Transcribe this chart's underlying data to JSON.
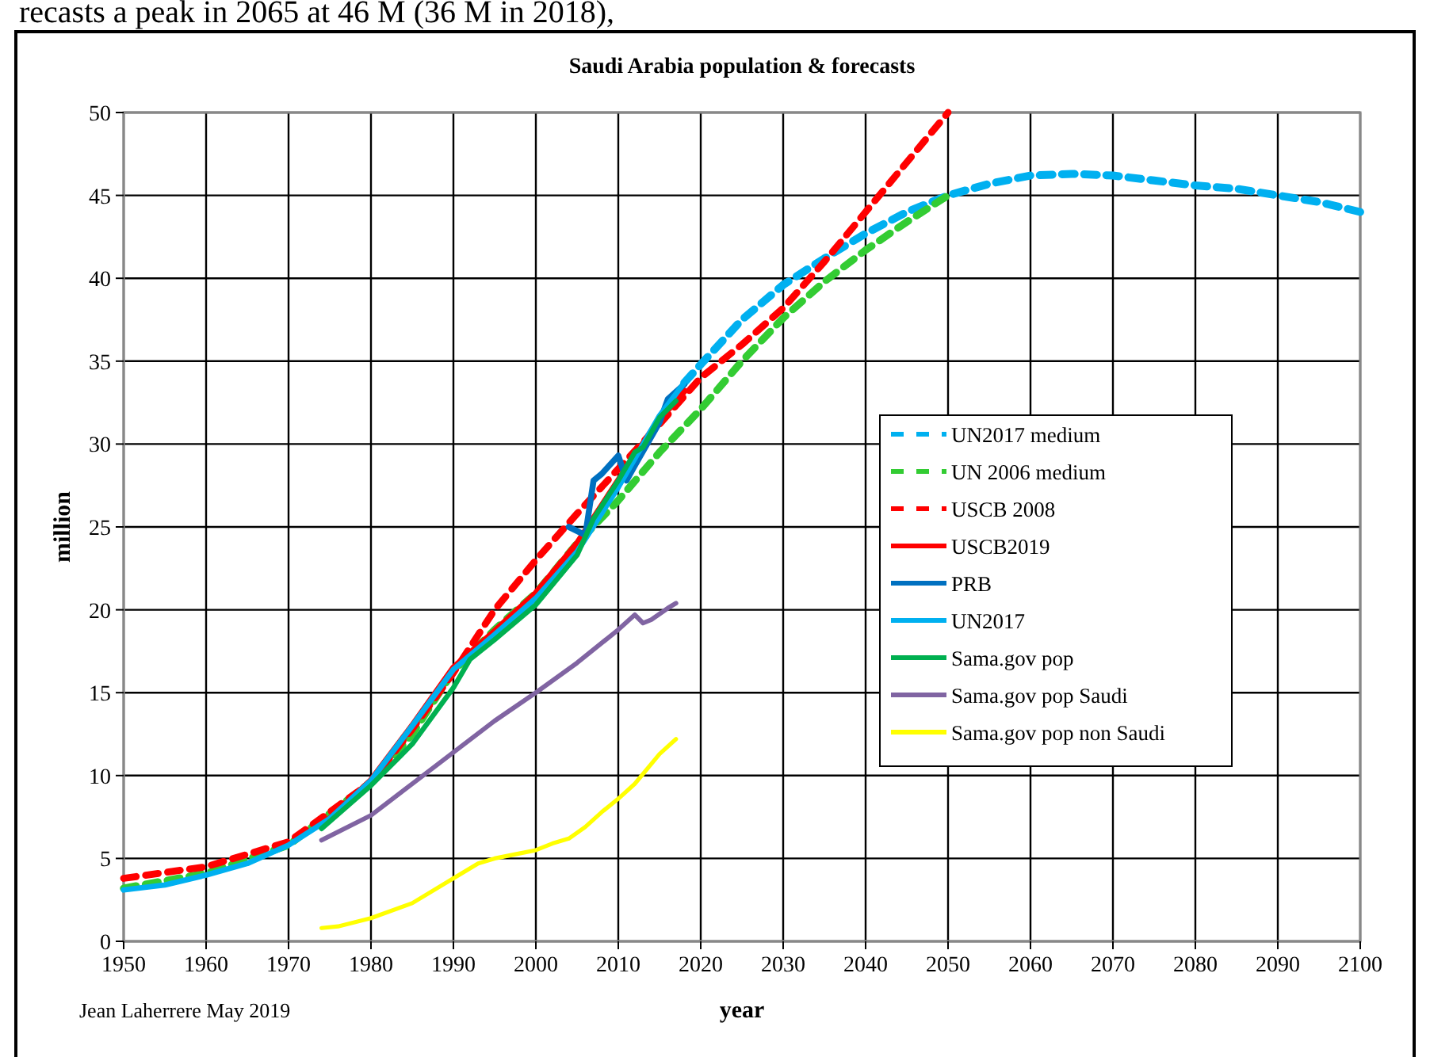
{
  "chart_data": {
    "type": "line",
    "title": "Saudi Arabia population & forecasts",
    "xlabel": "year",
    "ylabel": "million",
    "annotations": [
      "recasts a peak in 2065 at 46 M (36 M in 2018),",
      "Jean Laherrere May 2019"
    ],
    "xlim": [
      1950,
      2100
    ],
    "xticks": [
      1950,
      1960,
      1970,
      1980,
      1990,
      2000,
      2010,
      2020,
      2030,
      2040,
      2050,
      2060,
      2070,
      2080,
      2090,
      2100
    ],
    "ylim": [
      0,
      50
    ],
    "yticks": [
      0,
      5,
      10,
      15,
      20,
      25,
      30,
      35,
      40,
      45,
      50
    ],
    "grid": true,
    "legend": "right",
    "series": [
      {
        "name": "UN2017 medium",
        "color": "#00b0f0",
        "line_style": "dashed",
        "x": [
          2018,
          2020,
          2025,
          2030,
          2035,
          2040,
          2045,
          2050,
          2055,
          2060,
          2065,
          2070,
          2075,
          2080,
          2085,
          2090,
          2095,
          2100
        ],
        "values": [
          33.7,
          34.8,
          37.5,
          39.6,
          41.2,
          42.7,
          44.0,
          45.0,
          45.7,
          46.2,
          46.3,
          46.2,
          45.9,
          45.6,
          45.4,
          45.0,
          44.6,
          44.0
        ]
      },
      {
        "name": "UN 2006 medium",
        "color": "#33cc33",
        "line_style": "dashed",
        "x": [
          1950,
          1960,
          1970,
          1980,
          1985,
          1990,
          1995,
          2000,
          2005,
          2010,
          2015,
          2020,
          2025,
          2030,
          2035,
          2040,
          2045,
          2050
        ],
        "values": [
          3.2,
          4.1,
          5.8,
          9.6,
          12.5,
          16.3,
          18.8,
          21.0,
          24.0,
          26.6,
          29.5,
          32.1,
          35.0,
          37.6,
          39.8,
          41.7,
          43.4,
          45.0
        ]
      },
      {
        "name": "USCB 2008",
        "color": "#ff0000",
        "line_style": "dashed",
        "x": [
          1950,
          1960,
          1970,
          1980,
          1985,
          1990,
          1995,
          2000,
          2005,
          2010,
          2015,
          2020,
          2025,
          2030,
          2035,
          2040,
          2045,
          2050
        ],
        "values": [
          3.8,
          4.5,
          6.0,
          9.6,
          12.8,
          16.2,
          20.0,
          23.0,
          25.8,
          28.5,
          31.2,
          34.0,
          36.0,
          38.2,
          41.0,
          44.0,
          47.0,
          50.0
        ]
      },
      {
        "name": "USCB2019",
        "color": "#ff0000",
        "line_style": "solid",
        "x": [
          1975,
          1980,
          1985,
          1990,
          1995,
          2000,
          2005,
          2010,
          2015,
          2018
        ],
        "values": [
          7.4,
          9.7,
          13.0,
          16.5,
          18.7,
          21.0,
          24.0,
          27.8,
          31.5,
          33.2
        ]
      },
      {
        "name": "PRB",
        "color": "#0070c0",
        "line_style": "solid",
        "x": [
          2004,
          2006,
          2007,
          2008,
          2010,
          2011,
          2012,
          2015,
          2016,
          2018
        ],
        "values": [
          25.0,
          24.5,
          27.8,
          28.2,
          29.3,
          27.8,
          28.7,
          31.3,
          32.7,
          33.6
        ]
      },
      {
        "name": "UN2017",
        "color": "#00b0f0",
        "line_style": "solid",
        "x": [
          1950,
          1955,
          1960,
          1965,
          1970,
          1975,
          1980,
          1985,
          1990,
          1995,
          2000,
          2005,
          2010,
          2015,
          2018
        ],
        "values": [
          3.1,
          3.4,
          4.0,
          4.7,
          5.8,
          7.4,
          9.7,
          13.0,
          16.4,
          18.5,
          20.7,
          23.5,
          27.4,
          31.7,
          33.7
        ]
      },
      {
        "name": "Sama.gov pop",
        "color": "#00b050",
        "line_style": "solid",
        "x": [
          1974,
          1980,
          1985,
          1990,
          1992,
          1995,
          2000,
          2005,
          2007,
          2010,
          2012,
          2013,
          2015,
          2017
        ],
        "values": [
          6.8,
          9.4,
          11.9,
          15.3,
          17.0,
          18.2,
          20.3,
          23.3,
          25.5,
          27.8,
          29.5,
          29.8,
          31.6,
          32.6
        ]
      },
      {
        "name": "Sama.gov pop Saudi",
        "color": "#8064a2",
        "line_style": "solid",
        "x": [
          1974,
          1980,
          1985,
          1990,
          1995,
          2000,
          2005,
          2010,
          2012,
          2013,
          2014,
          2016,
          2017
        ],
        "values": [
          6.1,
          7.6,
          9.5,
          11.4,
          13.3,
          15.0,
          16.8,
          18.8,
          19.7,
          19.2,
          19.4,
          20.1,
          20.4
        ]
      },
      {
        "name": "Sama.gov pop non Saudi",
        "color": "#ffff00",
        "line_style": "solid",
        "x": [
          1974,
          1976,
          1980,
          1985,
          1990,
          1993,
          1995,
          1998,
          2000,
          2002,
          2004,
          2006,
          2008,
          2010,
          2012,
          2015,
          2017
        ],
        "values": [
          0.8,
          0.9,
          1.4,
          2.3,
          3.8,
          4.7,
          5.0,
          5.3,
          5.5,
          5.9,
          6.2,
          6.9,
          7.8,
          8.6,
          9.5,
          11.3,
          12.2
        ]
      }
    ]
  }
}
